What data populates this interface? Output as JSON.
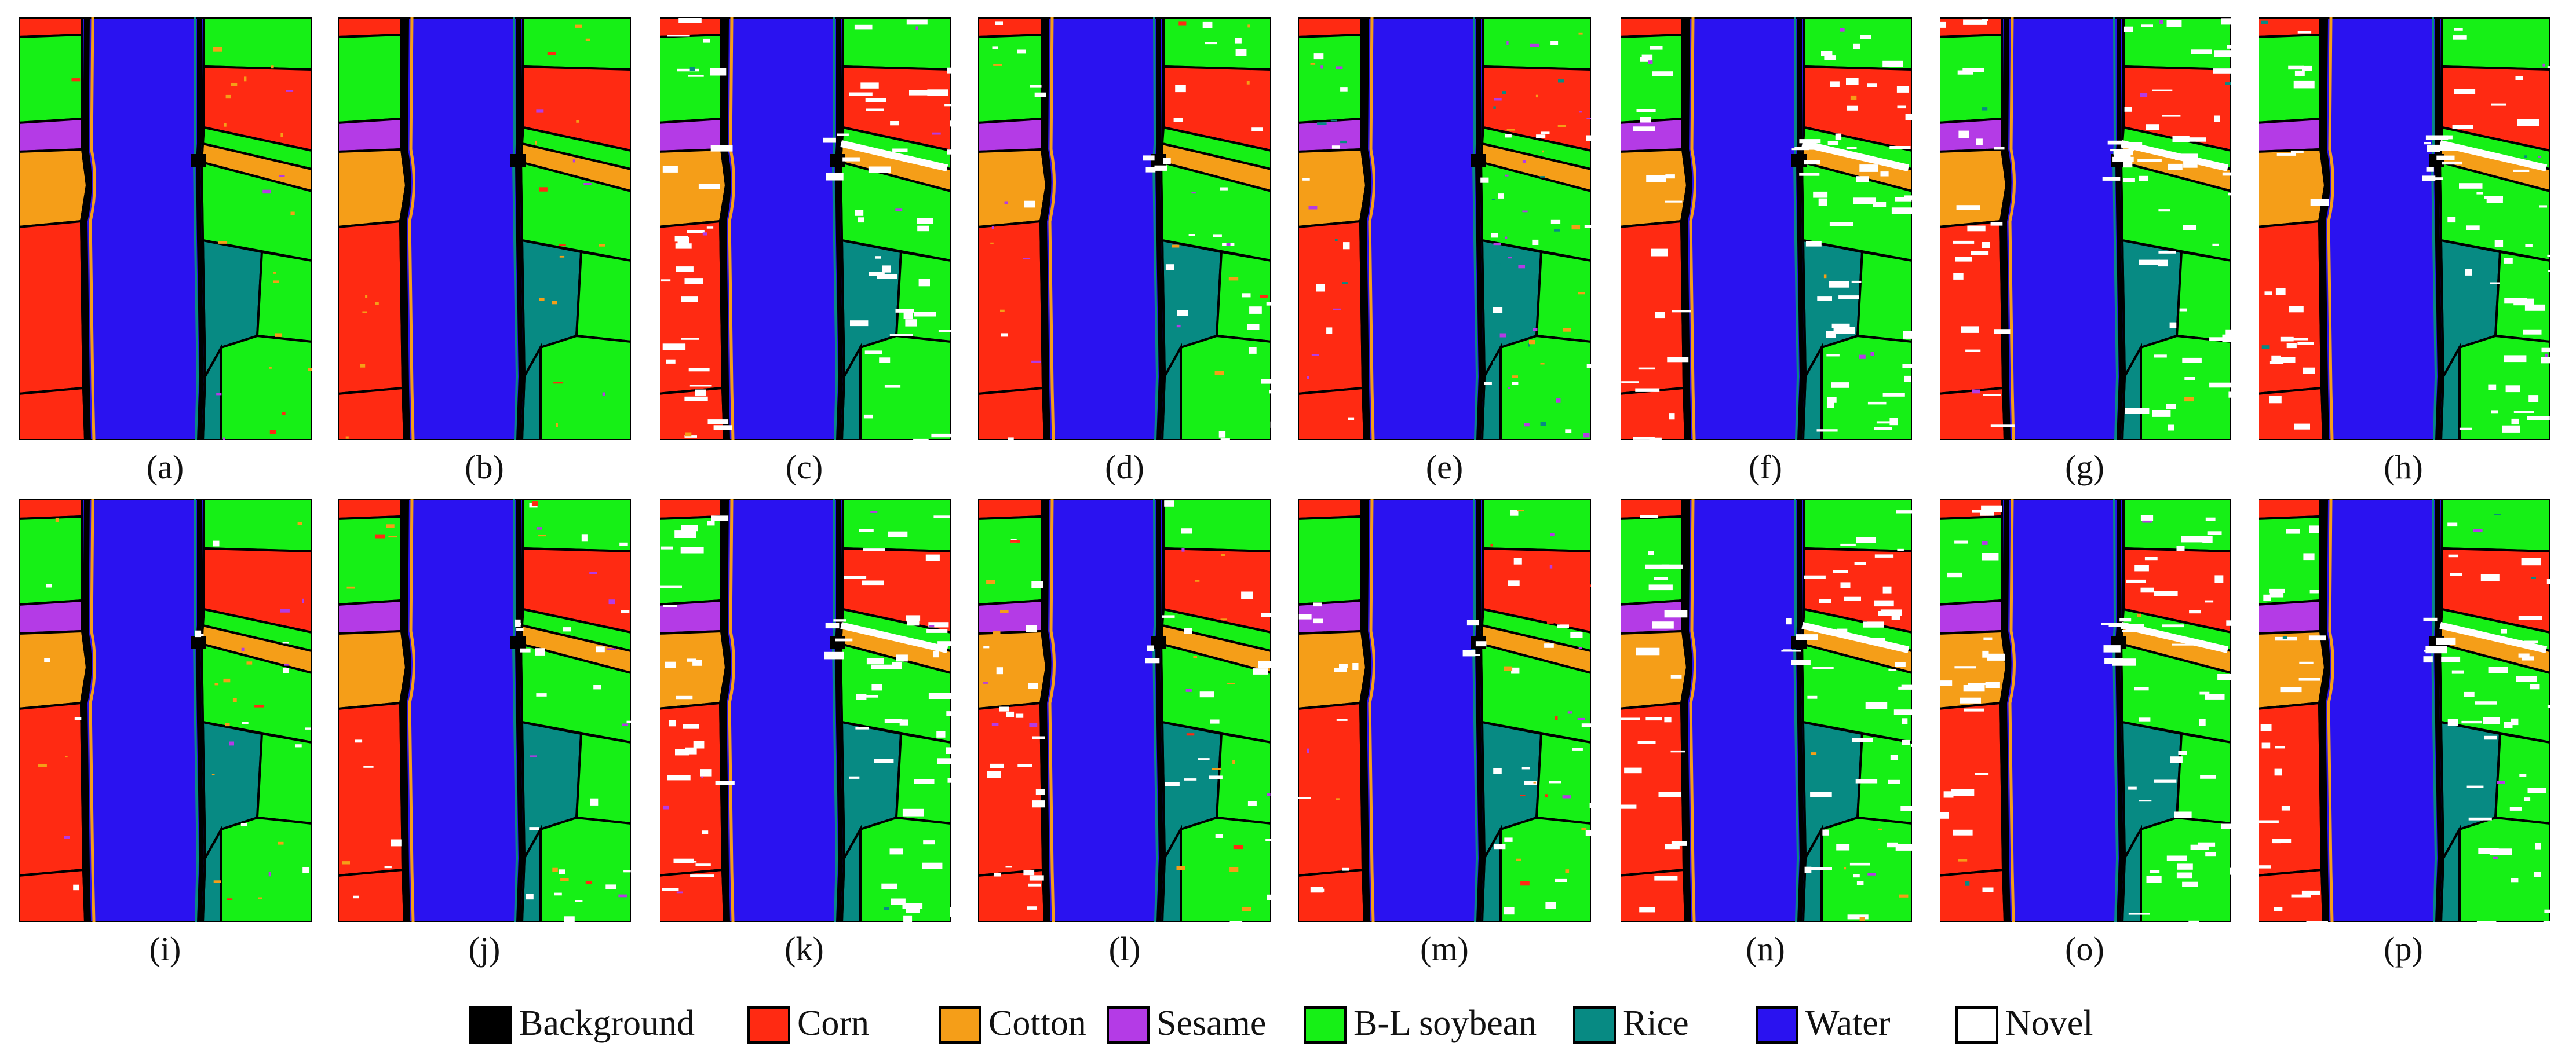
{
  "classes": [
    {
      "key": "background",
      "label": "Background",
      "color": "#000000"
    },
    {
      "key": "corn",
      "label": "Corn",
      "color": "#ff2a12"
    },
    {
      "key": "cotton",
      "label": "Cotton",
      "color": "#f59e18"
    },
    {
      "key": "sesame",
      "label": "Sesame",
      "color": "#b43be6"
    },
    {
      "key": "soybean",
      "label": "B-L soybean",
      "color": "#16f016"
    },
    {
      "key": "rice",
      "label": "Rice",
      "color": "#078a83"
    },
    {
      "key": "water",
      "label": "Water",
      "color": "#2a12f0"
    },
    {
      "key": "novel",
      "label": "Novel",
      "color": "#ffffff"
    }
  ],
  "panels": [
    {
      "id": "a",
      "caption": "(a)",
      "novel": 0,
      "noise": 0.2,
      "orange_spots": true
    },
    {
      "id": "b",
      "caption": "(b)",
      "novel": 0,
      "noise": 0.2,
      "orange_spots": true
    },
    {
      "id": "c",
      "caption": "(c)",
      "novel": 0.85,
      "noise": 0.05,
      "orange_spots": false
    },
    {
      "id": "d",
      "caption": "(d)",
      "novel": 0.35,
      "noise": 0.15,
      "orange_spots": true
    },
    {
      "id": "e",
      "caption": "(e)",
      "novel": 0.2,
      "noise": 0.45,
      "orange_spots": false
    },
    {
      "id": "f",
      "caption": "(f)",
      "novel": 0.9,
      "noise": 0.05,
      "orange_spots": false
    },
    {
      "id": "g",
      "caption": "(g)",
      "novel": 0.9,
      "noise": 0.05,
      "orange_spots": false
    },
    {
      "id": "h",
      "caption": "(h)",
      "novel": 0.85,
      "noise": 0.05,
      "orange_spots": false
    },
    {
      "id": "i",
      "caption": "(i)",
      "novel": 0.05,
      "noise": 0.2,
      "orange_spots": true
    },
    {
      "id": "j",
      "caption": "(j)",
      "novel": 0.25,
      "noise": 0.15,
      "orange_spots": true
    },
    {
      "id": "k",
      "caption": "(k)",
      "novel": 0.9,
      "noise": 0.05,
      "orange_spots": false
    },
    {
      "id": "l",
      "caption": "(l)",
      "novel": 0.45,
      "noise": 0.2,
      "orange_spots": true
    },
    {
      "id": "m",
      "caption": "(m)",
      "novel": 0.35,
      "noise": 0.2,
      "orange_spots": true
    },
    {
      "id": "n",
      "caption": "(n)",
      "novel": 0.9,
      "noise": 0.05,
      "orange_spots": false
    },
    {
      "id": "o",
      "caption": "(o)",
      "novel": 0.9,
      "noise": 0.05,
      "orange_spots": false
    },
    {
      "id": "p",
      "caption": "(p)",
      "novel": 0.85,
      "noise": 0.05,
      "orange_spots": false
    }
  ]
}
